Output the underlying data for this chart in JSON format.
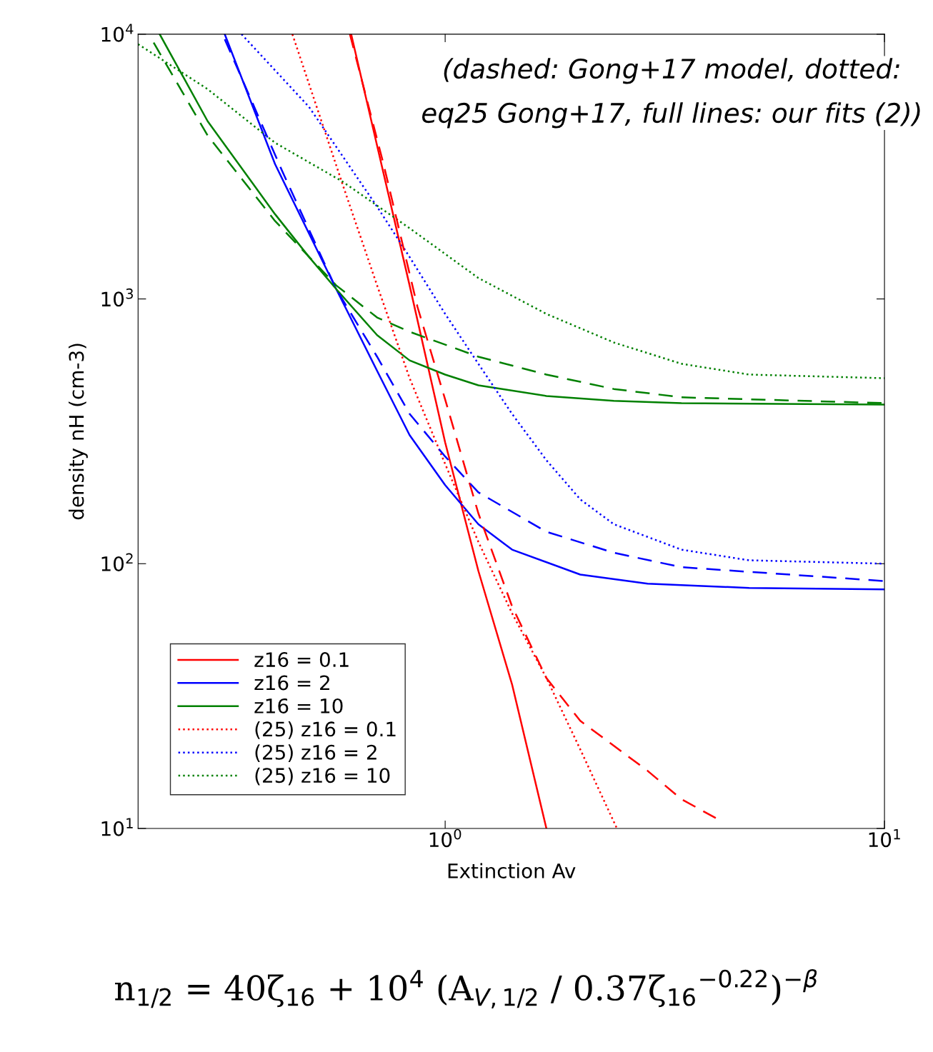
{
  "chart_data": {
    "type": "line",
    "xlabel": "Extinction Av",
    "ylabel": "density nH (cm-3)",
    "log": "xy",
    "grid": false,
    "legend": "bottom left",
    "marker": "none",
    "xlim": [
      0.2,
      10
    ],
    "xticks": [
      {
        "value": 1,
        "label": "10$^{0}$"
      },
      {
        "value": 10,
        "label": "10$^{1}$"
      }
    ],
    "ylim": [
      10,
      10000
    ],
    "yticks": [
      {
        "value": 10,
        "label": "10$^{1}$"
      },
      {
        "value": 100,
        "label": "10$^{2}$"
      },
      {
        "value": 1000,
        "label": "10$^{3}$"
      },
      {
        "value": 10000,
        "label": "10$^{4}$"
      }
    ],
    "annotations": [
      "(dashed: Gong+17 model, dotted: eq25 Gong+17, full lines: our fits (2))",
      "n$_{1/2}$ = 40ζ$_{16}$ + 10$^{4}$ (A$_{V,1/2}$ / 0.37ζ$_{16}$$^{−0.22}$)$^{−β}$"
    ],
    "series": [
      {
        "name": "z16 = 0.1",
        "color": "#ff0000",
        "line_style": "solid",
        "x": [
          0.611,
          0.83,
          1.0,
          1.19,
          1.42,
          1.7
        ],
        "values": [
          10000,
          1125,
          287,
          94,
          35,
          10
        ]
      },
      {
        "name": "z16 = 2",
        "color": "#0000ff",
        "line_style": "solid",
        "x": [
          0.315,
          0.41,
          0.565,
          0.7,
          0.83,
          1.0,
          1.19,
          1.42,
          2.03,
          2.89,
          4.92,
          10
        ],
        "values": [
          10000,
          3230,
          1090,
          535,
          306,
          198,
          141,
          113,
          91,
          84,
          81,
          80
        ]
      },
      {
        "name": "z16 = 10",
        "color": "#008000",
        "line_style": "solid",
        "x": [
          0.224,
          0.288,
          0.41,
          0.49,
          0.565,
          0.7,
          0.83,
          1.0,
          1.19,
          1.7,
          2.42,
          3.45,
          10
        ],
        "values": [
          10000,
          4690,
          2090,
          1440,
          1090,
          730,
          586,
          518,
          472,
          430,
          412,
          404,
          399
        ]
      },
      {
        "name": "(25) z16 = 0.1",
        "color": "#ff0000",
        "line_style": "dotted",
        "x": [
          0.449,
          0.585,
          0.7,
          0.83,
          1.0,
          1.19,
          1.42,
          1.7,
          2.03,
          2.46
        ],
        "values": [
          10000,
          2690,
          1125,
          502,
          238,
          121,
          65,
          37,
          19.9,
          10
        ]
      },
      {
        "name": "(25) z16 = 2",
        "color": "#0000ff",
        "line_style": "dotted",
        "x": [
          0.344,
          0.49,
          0.7,
          0.83,
          1.0,
          1.19,
          1.42,
          1.7,
          2.03,
          2.42,
          3.45,
          4.92,
          10
        ],
        "values": [
          10000,
          5310,
          2230,
          1440,
          878,
          569,
          368,
          246,
          175,
          141,
          113,
          103,
          100
        ]
      },
      {
        "name": "(25) z16 = 10",
        "color": "#008000",
        "line_style": "dotted",
        "x": [
          0.2,
          0.288,
          0.41,
          0.585,
          0.83,
          1.19,
          1.7,
          2.42,
          3.45,
          4.92,
          10
        ],
        "values": [
          9170,
          6200,
          3890,
          2770,
          1850,
          1200,
          878,
          685,
          569,
          518,
          502
        ]
      },
      {
        "color": "#ff0000",
        "line_style": "dashed",
        "x": [
          0.607,
          0.724,
          0.865,
          1.0,
          1.19,
          1.42,
          1.7,
          2.03,
          2.89,
          3.45,
          4.19
        ],
        "values": [
          10000,
          3230,
          933,
          417,
          155,
          69,
          37,
          25.5,
          16.5,
          12.9,
          10.8
        ]
      },
      {
        "color": "#0000ff",
        "line_style": "dashed",
        "x": [
          0.315,
          0.426,
          0.565,
          0.7,
          0.83,
          1.0,
          1.19,
          1.7,
          2.42,
          3.45,
          10
        ],
        "values": [
          9570,
          3030,
          1090,
          605,
          368,
          254,
          186,
          132,
          110,
          97,
          86
        ]
      },
      {
        "color": "#008000",
        "line_style": "dashed",
        "x": [
          0.217,
          0.288,
          0.41,
          0.565,
          0.7,
          0.83,
          1.19,
          1.7,
          2.42,
          3.45,
          10
        ],
        "values": [
          9290,
          4140,
          1970,
          1125,
          851,
          752,
          605,
          518,
          457,
          425,
          404
        ]
      }
    ]
  }
}
